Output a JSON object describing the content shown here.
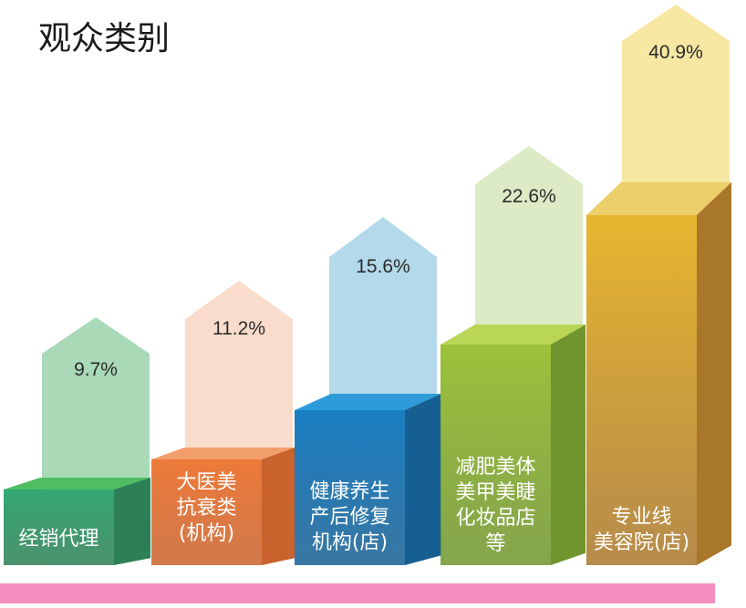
{
  "chart_data": {
    "type": "bar",
    "title": "观众类别",
    "categories": [
      [
        "经销代理"
      ],
      [
        "大医美",
        "抗衰类",
        "(机构)"
      ],
      [
        "健康养生",
        "产后修复",
        "机构(店)"
      ],
      [
        "减肥美体",
        "美甲美睫",
        "化妆品店",
        "等"
      ],
      [
        "专业线",
        "美容院(店)"
      ]
    ],
    "values": [
      9.7,
      11.2,
      15.6,
      22.6,
      40.9
    ],
    "value_labels": [
      "9.7%",
      "11.2%",
      "15.6%",
      "22.6%",
      "40.9%"
    ],
    "unit": "%",
    "colors": {
      "front": [
        "#33a872",
        "#ee7a3a",
        "#1a7fc2",
        "#9cc13a",
        "#e8b730"
      ],
      "side": [
        "#2d7f55",
        "#c9622c",
        "#165f93",
        "#70952e",
        "#a9772a"
      ],
      "top": [
        "#50bd62",
        "#f29e6c",
        "#2e9bd8",
        "#b9d657",
        "#eccf6a"
      ],
      "arrow": [
        "#a9d9b6",
        "#f9dccb",
        "#b3d9ea",
        "#dcebc6",
        "#f6e7a3"
      ],
      "footer_band": "#f28dbd"
    }
  }
}
